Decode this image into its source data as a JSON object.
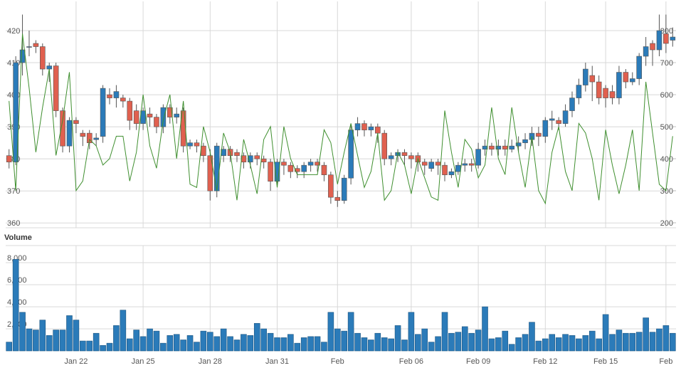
{
  "chart_data": [
    {
      "type": "candlestick",
      "categories": [
        null,
        null,
        null,
        null,
        null,
        null,
        null,
        null,
        null,
        null,
        "Jan 22",
        null,
        null,
        null,
        null,
        null,
        null,
        null,
        null,
        null,
        "Jan 25",
        null,
        null,
        null,
        null,
        null,
        null,
        null,
        null,
        null,
        "Jan 28",
        null,
        null,
        null,
        null,
        null,
        null,
        null,
        null,
        null,
        "Jan 31",
        null,
        null,
        null,
        null,
        null,
        null,
        null,
        null,
        "Feb",
        null,
        null,
        null,
        null,
        null,
        null,
        null,
        null,
        null,
        null,
        "Feb 06",
        null,
        null,
        null,
        null,
        null,
        null,
        null,
        null,
        null,
        "Feb 09",
        null,
        null,
        null,
        null,
        null,
        null,
        null,
        null,
        null,
        "Feb 12",
        null,
        null,
        null,
        null,
        null,
        null,
        null,
        null,
        "Feb 15",
        null,
        null,
        null,
        null,
        null,
        null,
        null,
        null,
        "Feb",
        null
      ],
      "open": [
        381,
        379,
        410,
        415,
        416,
        415,
        408,
        409,
        395,
        384,
        392,
        388,
        388,
        386,
        387,
        400,
        399,
        399,
        398,
        395,
        391,
        394,
        393,
        390,
        396,
        393,
        395,
        384,
        385,
        384,
        381,
        370,
        381,
        383,
        382,
        381,
        379,
        381,
        380,
        379,
        373,
        379,
        378,
        377,
        376,
        378,
        379,
        378,
        375,
        368,
        367,
        374,
        389,
        391,
        389,
        390,
        388,
        380,
        381,
        382,
        381,
        381,
        379,
        377,
        379,
        378,
        375,
        376,
        378,
        378.5,
        378,
        383,
        384,
        383,
        384,
        383,
        384,
        385,
        386,
        388,
        387,
        392,
        392,
        391,
        395,
        399,
        403,
        406,
        404,
        402,
        401,
        399,
        407,
        404,
        405,
        412,
        416,
        414,
        419,
        417
      ],
      "high": [
        383,
        412,
        425,
        420,
        417,
        416,
        410,
        410,
        396,
        393,
        393,
        389,
        389,
        388,
        403,
        402,
        403,
        400,
        399,
        397,
        396,
        396,
        394,
        397,
        397,
        396,
        396,
        386,
        386,
        385,
        383,
        385,
        384,
        384,
        383,
        382,
        382,
        382,
        381,
        380,
        380,
        380,
        379,
        378,
        379,
        380,
        380,
        379,
        376,
        370,
        375,
        391,
        393,
        392,
        391,
        391,
        389,
        382,
        383,
        383,
        382,
        382,
        380,
        380,
        380,
        379,
        377,
        379,
        380,
        380,
        385,
        386,
        385,
        386,
        386,
        386,
        387,
        388,
        390,
        390,
        393,
        395,
        393,
        397,
        401,
        405,
        410,
        409,
        406,
        403,
        403,
        409,
        408,
        407,
        413,
        418,
        417,
        425,
        425,
        421
      ],
      "low": [
        377,
        378,
        406,
        412,
        413,
        406,
        404,
        393,
        382,
        382,
        388,
        384,
        383,
        384,
        385,
        397,
        396,
        396,
        389,
        389,
        389,
        390,
        388,
        388,
        391,
        391,
        382,
        383,
        382,
        379,
        367,
        368,
        379,
        379,
        379,
        377,
        377,
        378,
        377,
        370,
        372,
        375,
        374,
        374,
        374,
        376,
        376,
        373,
        366,
        365,
        366,
        372,
        387,
        387,
        387,
        385,
        378,
        378,
        379,
        378,
        377,
        376,
        375,
        376,
        375,
        373,
        374,
        375,
        376,
        376,
        377,
        381,
        381,
        381,
        381,
        382,
        382,
        383,
        384,
        384,
        385,
        389,
        389,
        390,
        393,
        397,
        401,
        398,
        397,
        396,
        397,
        397,
        402,
        403,
        403,
        409,
        409,
        412,
        413,
        415
      ],
      "close": [
        379,
        410,
        414,
        415,
        415,
        408,
        409,
        395,
        384,
        392,
        391,
        387,
        385,
        386.5,
        402,
        399,
        401,
        398,
        392,
        391,
        395,
        393,
        390,
        396,
        393,
        394,
        384,
        385,
        384,
        381,
        370,
        384,
        383,
        381,
        381,
        379,
        381,
        380,
        379,
        373,
        379,
        378,
        376,
        376,
        378,
        379,
        378,
        375,
        368,
        367,
        374,
        389,
        391,
        389,
        390,
        388,
        380,
        381,
        382,
        381,
        380,
        379,
        378,
        379,
        378,
        375,
        376,
        378,
        378.5,
        378,
        383,
        384,
        383,
        384,
        383,
        384,
        385,
        386,
        388,
        387,
        392,
        392.5,
        391,
        395,
        399,
        403,
        408,
        404,
        399,
        399,
        399,
        407,
        404,
        405,
        412,
        415,
        414,
        420,
        416,
        418
      ],
      "up_color": "#2b7bb9",
      "down_color": "#e0604f",
      "series": [
        {
          "type": "line",
          "axis": "y2",
          "color": "#3f8f2f",
          "values": [
            580,
            300,
            790,
            620,
            420,
            560,
            680,
            410,
            520,
            670,
            300,
            330,
            460,
            440,
            380,
            400,
            470,
            470,
            330,
            420,
            600,
            440,
            370,
            520,
            600,
            400,
            580,
            320,
            310,
            500,
            420,
            300,
            480,
            420,
            270,
            460,
            380,
            290,
            460,
            500,
            310,
            500,
            400,
            350,
            350,
            350,
            350,
            490,
            450,
            320,
            420,
            510,
            410,
            310,
            360,
            480,
            270,
            300,
            420,
            380,
            290,
            400,
            340,
            280,
            270,
            550,
            420,
            310,
            460,
            430,
            340,
            380,
            560,
            400,
            350,
            560,
            420,
            310,
            470,
            300,
            260,
            420,
            500,
            360,
            300,
            510,
            480,
            400,
            270,
            490,
            380,
            290,
            380,
            490,
            300,
            640,
            480,
            320,
            300,
            470
          ]
        }
      ],
      "ylim": [
        358.5,
        429.1
      ],
      "yticks": [
        360,
        370,
        380,
        390,
        400,
        410,
        420
      ],
      "y2lim": [
        184,
        891
      ],
      "y2ticks": [
        200,
        300,
        400,
        500,
        600,
        700,
        800
      ],
      "grid": true
    },
    {
      "type": "bar",
      "title": "Volume",
      "color": "#2b7bb9",
      "values": [
        800,
        8300,
        3500,
        2000,
        1900,
        2800,
        1400,
        1900,
        1900,
        3200,
        2800,
        900,
        900,
        1600,
        500,
        700,
        2300,
        3700,
        1100,
        1900,
        1300,
        2000,
        1800,
        700,
        1400,
        1500,
        1000,
        1400,
        800,
        1800,
        1700,
        1300,
        2000,
        1300,
        1000,
        1500,
        1400,
        2500,
        2000,
        1600,
        1200,
        1200,
        1500,
        700,
        1200,
        1300,
        1300,
        800,
        3500,
        2000,
        1800,
        3500,
        1600,
        1200,
        1000,
        1600,
        1200,
        1100,
        2300,
        1000,
        3500,
        1500,
        2000,
        800,
        1300,
        3500,
        1600,
        1700,
        2200,
        1600,
        1900,
        4000,
        1100,
        1200,
        1800,
        600,
        1200,
        1500,
        2600,
        900,
        1100,
        1500,
        1200,
        1500,
        1400,
        1100,
        1400,
        1800,
        1100,
        3300,
        1500,
        1900,
        1600,
        1600,
        1700,
        3000,
        1700,
        2000,
        2300,
        1600
      ],
      "ylim": [
        0,
        9550
      ],
      "yticks": [
        {
          "value": 2000,
          "label": "2,000"
        },
        {
          "value": 4000,
          "label": "4,000"
        },
        {
          "value": 6000,
          "label": "6,000"
        },
        {
          "value": 8000,
          "label": "8,000"
        }
      ],
      "grid": true
    }
  ]
}
